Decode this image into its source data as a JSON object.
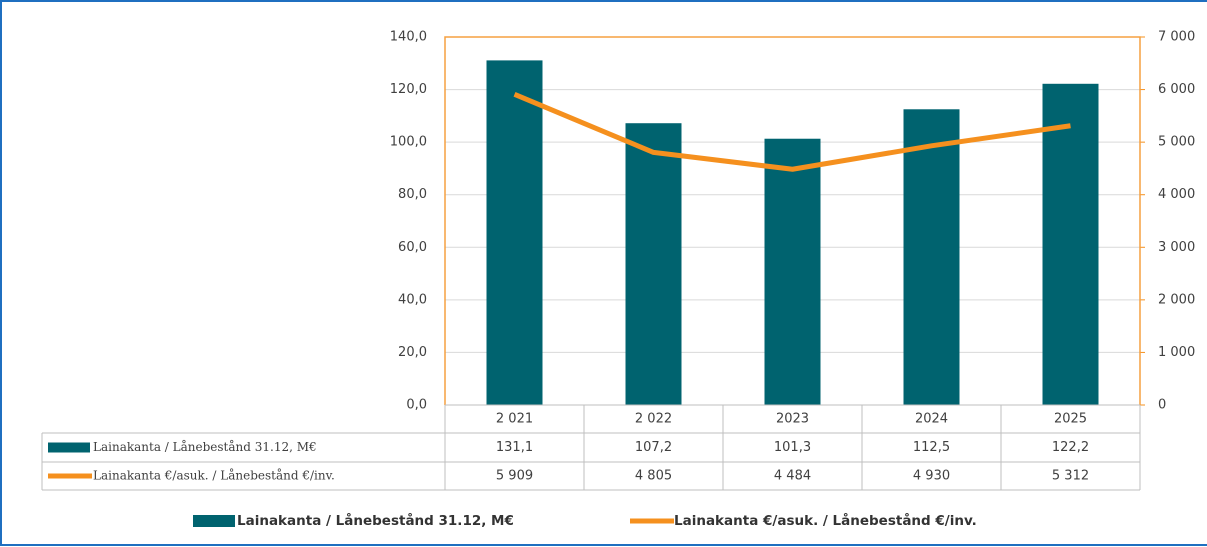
{
  "chart_data": {
    "type": "bar-line",
    "categories": [
      "2 021",
      "2 022",
      "2023",
      "2024",
      "2025"
    ],
    "series": [
      {
        "name": "Lainakanta / Lånebestånd 31.12, M€",
        "type": "bar",
        "color": "#00636f",
        "axis": "y",
        "values": [
          131.1,
          107.2,
          101.3,
          112.5,
          122.2
        ],
        "value_labels": [
          "131,1",
          "107,2",
          "101,3",
          "112,5",
          "122,2"
        ]
      },
      {
        "name": "Lainakanta €/asuk. / Lånebestånd €/inv.",
        "type": "line",
        "color": "#f5901e",
        "axis": "y2",
        "values": [
          5909,
          4805,
          4484,
          4930,
          5312
        ],
        "value_labels": [
          "5 909",
          "4 805",
          "4 484",
          "4 930",
          "5 312"
        ]
      }
    ],
    "ylim": [
      0,
      140
    ],
    "yticks": [
      {
        "value": 0,
        "label": "0,0"
      },
      {
        "value": 20,
        "label": "20,0"
      },
      {
        "value": 40,
        "label": "40,0"
      },
      {
        "value": 60,
        "label": "60,0"
      },
      {
        "value": 80,
        "label": "80,0"
      },
      {
        "value": 100,
        "label": "100,0"
      },
      {
        "value": 120,
        "label": "120,0"
      },
      {
        "value": 140,
        "label": "140,0"
      }
    ],
    "y2lim": [
      0,
      7000
    ],
    "y2ticks": [
      0,
      {
        "value": 1000,
        "label": "1 000"
      },
      {
        "value": 2000,
        "label": "2 000"
      },
      {
        "value": 3000,
        "label": "3 000"
      },
      {
        "value": 4000,
        "label": "4 000"
      },
      {
        "value": 5000,
        "label": "5 000"
      },
      {
        "value": 6000,
        "label": "6 000"
      },
      {
        "value": 7000,
        "label": "7 000"
      }
    ],
    "grid": true,
    "legend": "bottom"
  }
}
